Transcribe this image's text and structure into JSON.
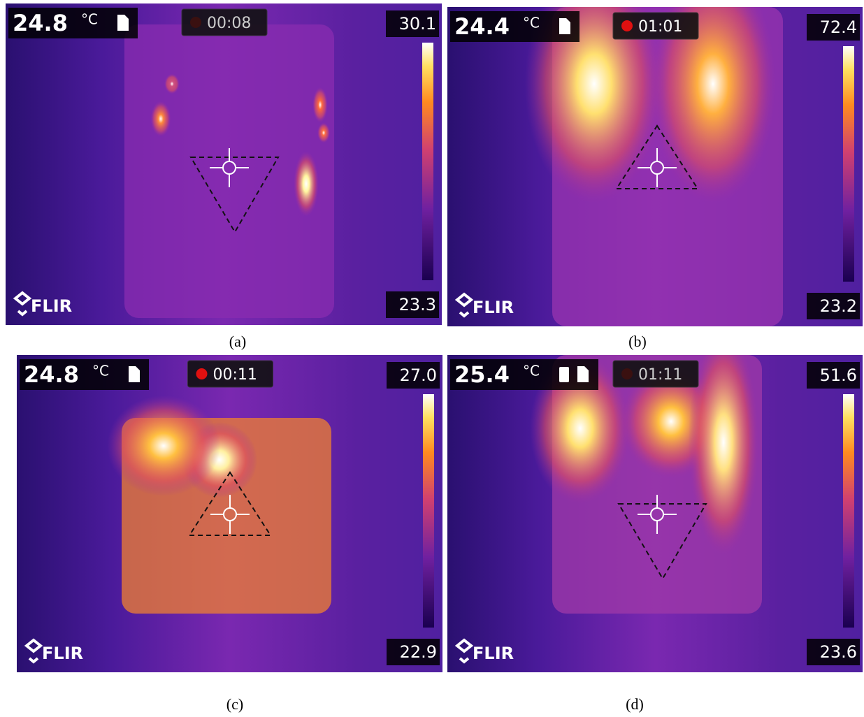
{
  "panels": [
    {
      "spot_temp": "24.8",
      "unit": "°C",
      "timer": "00:08",
      "scale_max": "30.1",
      "scale_min": "23.3",
      "logo": "FLIR",
      "caption": "(a)"
    },
    {
      "spot_temp": "24.4",
      "unit": "°C",
      "timer": "01:01",
      "scale_max": "72.4",
      "scale_min": "23.2",
      "logo": "FLIR",
      "caption": "(b)"
    },
    {
      "spot_temp": "24.8",
      "unit": "°C",
      "timer": "00:11",
      "scale_max": "27.0",
      "scale_min": "22.9",
      "logo": "FLIR",
      "caption": "(c)"
    },
    {
      "spot_temp": "25.4",
      "unit": "°C",
      "timer": "01:11",
      "scale_max": "51.6",
      "scale_min": "23.6",
      "logo": "FLIR",
      "caption": "(d)"
    }
  ]
}
